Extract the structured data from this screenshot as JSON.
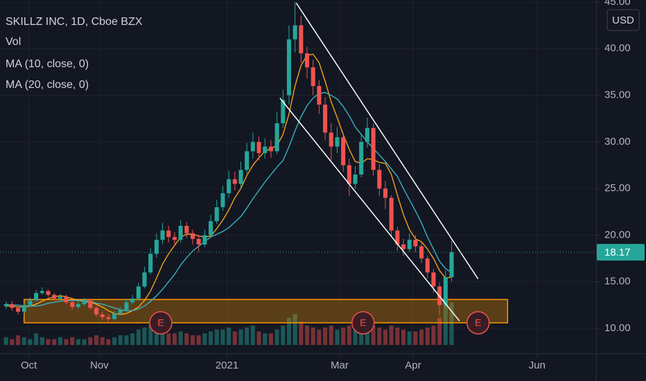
{
  "chart_data": {
    "type": "candlestick",
    "title": "SKILLZ INC, 1D, Cboe BZX",
    "currency": "USD",
    "up_color": "#26a69a",
    "down_color": "#ef5350",
    "open": [
      12.4,
      12.6,
      12.2,
      11.8,
      12.5,
      13.0,
      13.8,
      14.0,
      13.6,
      13.2,
      13.4,
      12.8,
      12.3,
      12.6,
      13.0,
      12.2,
      11.5,
      11.2,
      11.0,
      11.6,
      12.0,
      12.8,
      13.2,
      14.5,
      16.0,
      18.0,
      19.5,
      20.5,
      19.8,
      19.5,
      21.0,
      20.2,
      19.6,
      19.0,
      20.0,
      21.5,
      23.0,
      24.5,
      26.0,
      25.5,
      27.0,
      29.0,
      30.0,
      28.8,
      29.5,
      29.0,
      32.0,
      35.0,
      41.0,
      42.5,
      39.5,
      38.0,
      36.0,
      34.0,
      31.0,
      29.5,
      30.5,
      27.5,
      25.5,
      26.5,
      30.0,
      31.5,
      27.0,
      25.0,
      24.0,
      20.5,
      19.0,
      18.5,
      19.5,
      18.8,
      17.5,
      16.0,
      14.5,
      12.5,
      15.5
    ],
    "high": [
      12.9,
      12.9,
      12.4,
      12.7,
      13.3,
      14.1,
      14.4,
      14.2,
      13.8,
      13.7,
      13.6,
      13.0,
      12.9,
      13.3,
      13.2,
      12.4,
      11.8,
      11.5,
      11.9,
      12.3,
      13.1,
      13.6,
      14.9,
      16.6,
      18.6,
      20.2,
      21.3,
      21.0,
      20.3,
      21.6,
      21.4,
      20.6,
      20.0,
      20.6,
      22.2,
      23.8,
      25.3,
      26.9,
      26.8,
      27.9,
      29.9,
      31.0,
      30.6,
      30.4,
      30.2,
      33.2,
      35.6,
      42.5,
      45.0,
      43.5,
      40.2,
      38.8,
      36.6,
      34.8,
      32.0,
      31.6,
      31.0,
      28.2,
      27.4,
      30.8,
      32.6,
      32.0,
      27.6,
      25.8,
      24.3,
      20.9,
      19.6,
      20.2,
      20.0,
      19.2,
      17.8,
      16.4,
      14.9,
      16.2,
      19.4
    ],
    "low": [
      12.1,
      11.9,
      11.5,
      11.6,
      12.3,
      12.9,
      13.6,
      13.4,
      13.0,
      13.0,
      12.6,
      12.0,
      12.1,
      12.4,
      12.0,
      11.2,
      10.9,
      10.7,
      10.8,
      11.4,
      11.8,
      12.6,
      13.0,
      14.3,
      15.8,
      17.6,
      19.0,
      19.2,
      18.9,
      19.2,
      19.7,
      19.0,
      18.2,
      18.7,
      19.8,
      21.2,
      22.6,
      24.0,
      24.8,
      25.0,
      26.6,
      28.2,
      28.0,
      28.2,
      28.3,
      28.7,
      31.5,
      34.0,
      39.6,
      38.5,
      36.8,
      35.0,
      33.0,
      30.2,
      28.0,
      28.8,
      26.8,
      24.2,
      25.0,
      26.2,
      29.4,
      26.4,
      24.2,
      22.8,
      19.8,
      18.3,
      17.8,
      18.2,
      18.2,
      17.0,
      15.4,
      13.8,
      11.4,
      12.2,
      15.0
    ],
    "close": [
      12.6,
      12.2,
      11.8,
      12.5,
      13.0,
      13.8,
      14.0,
      13.6,
      13.2,
      13.4,
      12.8,
      12.3,
      12.6,
      13.0,
      12.2,
      11.5,
      11.2,
      11.0,
      11.6,
      12.0,
      12.8,
      13.2,
      14.5,
      16.0,
      18.0,
      19.5,
      20.5,
      19.8,
      19.5,
      21.0,
      20.2,
      19.6,
      19.0,
      20.0,
      21.5,
      23.0,
      24.5,
      26.0,
      25.5,
      27.0,
      29.0,
      30.0,
      28.8,
      29.5,
      29.0,
      32.0,
      34.5,
      41.0,
      42.5,
      39.5,
      38.0,
      36.0,
      34.0,
      31.0,
      29.5,
      30.5,
      27.5,
      25.5,
      26.5,
      30.0,
      31.5,
      27.0,
      25.0,
      24.0,
      20.5,
      19.0,
      18.5,
      19.5,
      18.8,
      17.5,
      16.0,
      14.5,
      12.5,
      15.5,
      18.17
    ],
    "volume": {
      "name": "Vol",
      "values": [
        4,
        3,
        5,
        4,
        3,
        6,
        4,
        3,
        3,
        4,
        3,
        4,
        3,
        3,
        4,
        5,
        4,
        3,
        4,
        5,
        5,
        6,
        8,
        9,
        10,
        9,
        7,
        6,
        6,
        7,
        6,
        5,
        5,
        6,
        7,
        8,
        8,
        9,
        7,
        8,
        9,
        10,
        7,
        6,
        6,
        8,
        10,
        14,
        16,
        12,
        10,
        9,
        8,
        9,
        10,
        8,
        9,
        10,
        8,
        11,
        12,
        10,
        9,
        8,
        10,
        9,
        8,
        7,
        7,
        8,
        9,
        10,
        14,
        25,
        22
      ]
    },
    "series": [
      {
        "name": "MA (10, close, 0)",
        "color": "#f6a21e",
        "values": [
          12.4,
          12.4,
          12.3,
          12.3,
          12.4,
          12.6,
          12.9,
          13.2,
          13.4,
          13.5,
          13.4,
          13.2,
          13.0,
          12.9,
          12.8,
          12.6,
          12.3,
          11.9,
          11.6,
          11.5,
          11.6,
          11.9,
          12.3,
          13.0,
          14.0,
          15.4,
          16.9,
          18.0,
          18.9,
          19.8,
          20.1,
          20.1,
          19.9,
          19.8,
          19.9,
          20.7,
          21.6,
          22.7,
          24.0,
          25.0,
          26.4,
          27.5,
          28.3,
          29.0,
          29.3,
          29.6,
          30.8,
          33.0,
          36.0,
          38.2,
          39.3,
          39.4,
          38.5,
          36.5,
          34.3,
          32.6,
          30.8,
          29.2,
          27.9,
          27.7,
          28.2,
          28.1,
          27.8,
          27.7,
          26.5,
          24.3,
          22.2,
          20.6,
          19.6,
          19.3,
          18.5,
          17.5,
          16.2,
          15.4,
          15.5
        ]
      },
      {
        "name": "MA (20, close, 0)",
        "color": "#3bb3bf",
        "values": [
          12.6,
          12.5,
          12.5,
          12.4,
          12.4,
          12.4,
          12.5,
          12.7,
          12.8,
          12.9,
          13.0,
          13.0,
          13.0,
          13.0,
          12.9,
          12.7,
          12.6,
          12.4,
          12.2,
          12.0,
          11.9,
          11.9,
          12.1,
          12.4,
          12.9,
          13.5,
          14.2,
          15.0,
          15.8,
          16.8,
          17.6,
          18.3,
          18.8,
          19.3,
          19.8,
          20.1,
          20.4,
          20.8,
          21.4,
          22.0,
          22.9,
          23.9,
          24.8,
          25.7,
          26.5,
          27.3,
          28.0,
          29.5,
          31.2,
          32.7,
          33.9,
          34.7,
          35.2,
          35.3,
          35.0,
          34.6,
          33.8,
          32.8,
          31.6,
          30.8,
          30.0,
          29.3,
          28.6,
          27.9,
          27.1,
          26.3,
          25.0,
          23.8,
          22.6,
          21.3,
          19.8,
          18.5,
          17.2,
          16.4,
          16.0
        ]
      }
    ],
    "last_price": 18.17,
    "xlim": [
      -1,
      98
    ],
    "xticks": [
      {
        "value": 3.8,
        "label": "Oct"
      },
      {
        "value": 15.5,
        "label": "Nov"
      },
      {
        "value": 36.7,
        "label": "2021"
      },
      {
        "value": 55.4,
        "label": "Mar"
      },
      {
        "value": 67.6,
        "label": "Apr"
      },
      {
        "value": 88.2,
        "label": "Jun"
      }
    ],
    "ylim": [
      7.33,
      45.22
    ],
    "yticks": [
      {
        "value": 10,
        "label": "10.00"
      },
      {
        "value": 15,
        "label": "15.00"
      },
      {
        "value": 20,
        "label": "20.00"
      },
      {
        "value": 25,
        "label": "25.00"
      },
      {
        "value": 30,
        "label": "30.00"
      },
      {
        "value": 35,
        "label": "35.00"
      },
      {
        "value": 40,
        "label": "40.00"
      },
      {
        "value": 45,
        "label": "45.00"
      }
    ],
    "grid": true,
    "zone": {
      "x": [
        3.0,
        83.3
      ],
      "y": [
        10.6,
        13.1
      ],
      "color": "#ff9800"
    },
    "trend_lines": [
      {
        "x": [
          48.2,
          78.4
        ],
        "y": [
          44.9,
          15.3
        ]
      },
      {
        "x": [
          45.5,
          75.3
        ],
        "y": [
          34.7,
          10.8
        ]
      }
    ],
    "markers": {
      "label": "E",
      "x": [
        25.7,
        59.3,
        78.4
      ],
      "y": [
        10.6,
        10.6,
        10.6
      ]
    }
  }
}
